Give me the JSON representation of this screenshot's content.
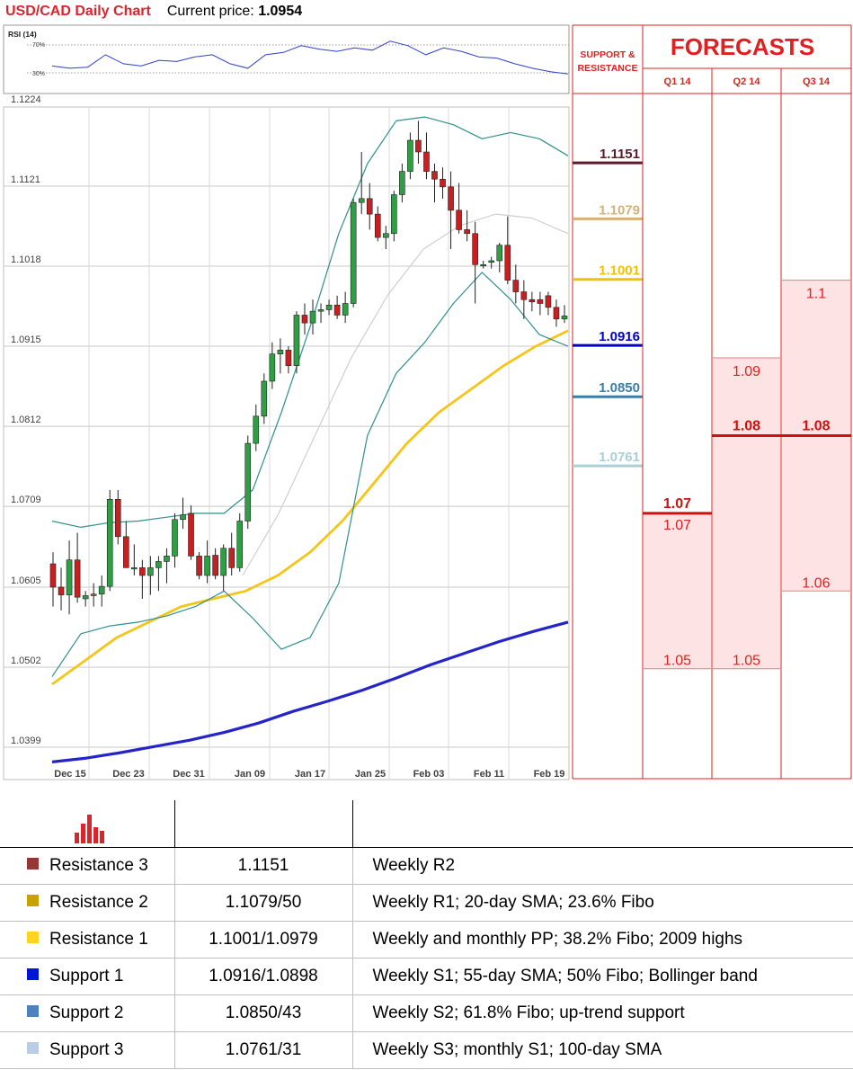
{
  "header": {
    "title": "USD/CAD Daily Chart",
    "price_label": "Current price:",
    "price_value": "1.0954"
  },
  "chart_data": {
    "type": "candlestick",
    "ylim": [
      1.0399,
      1.1224
    ],
    "yticks": [
      "1.1224",
      "1.1121",
      "1.1018",
      "1.0915",
      "1.0812",
      "1.0709",
      "1.0605",
      "1.0502",
      "1.0399"
    ],
    "xticks": [
      "Dec 15",
      "Dec 23",
      "Dec 31",
      "Jan 09",
      "Jan 17",
      "Jan 25",
      "Feb 03",
      "Feb 11",
      "Feb 19"
    ],
    "candles": [
      {
        "o": 1.0635,
        "h": 1.065,
        "l": 1.058,
        "c": 1.0605
      },
      {
        "o": 1.0605,
        "h": 1.063,
        "l": 1.0575,
        "c": 1.0595
      },
      {
        "o": 1.0595,
        "h": 1.0665,
        "l": 1.057,
        "c": 1.064
      },
      {
        "o": 1.064,
        "h": 1.0675,
        "l": 1.0585,
        "c": 1.0592
      },
      {
        "o": 1.059,
        "h": 1.06,
        "l": 1.058,
        "c": 1.0594
      },
      {
        "o": 1.0594,
        "h": 1.061,
        "l": 1.058,
        "c": 1.0596
      },
      {
        "o": 1.0596,
        "h": 1.062,
        "l": 1.058,
        "c": 1.0606
      },
      {
        "o": 1.0606,
        "h": 1.073,
        "l": 1.06,
        "c": 1.0718
      },
      {
        "o": 1.0718,
        "h": 1.073,
        "l": 1.066,
        "c": 1.067
      },
      {
        "o": 1.067,
        "h": 1.069,
        "l": 1.063,
        "c": 1.063
      },
      {
        "o": 1.063,
        "h": 1.066,
        "l": 1.062,
        "c": 1.063
      },
      {
        "o": 1.063,
        "h": 1.064,
        "l": 1.059,
        "c": 1.062
      },
      {
        "o": 1.062,
        "h": 1.0645,
        "l": 1.0595,
        "c": 1.063
      },
      {
        "o": 1.063,
        "h": 1.0645,
        "l": 1.06,
        "c": 1.0638
      },
      {
        "o": 1.0638,
        "h": 1.0655,
        "l": 1.061,
        "c": 1.0645
      },
      {
        "o": 1.0645,
        "h": 1.07,
        "l": 1.063,
        "c": 1.0692
      },
      {
        "o": 1.0692,
        "h": 1.072,
        "l": 1.068,
        "c": 1.0698
      },
      {
        "o": 1.07,
        "h": 1.071,
        "l": 1.064,
        "c": 1.0645
      },
      {
        "o": 1.0645,
        "h": 1.065,
        "l": 1.0615,
        "c": 1.062
      },
      {
        "o": 1.062,
        "h": 1.0665,
        "l": 1.061,
        "c": 1.0645
      },
      {
        "o": 1.0646,
        "h": 1.0655,
        "l": 1.0615,
        "c": 1.062
      },
      {
        "o": 1.062,
        "h": 1.066,
        "l": 1.06,
        "c": 1.0655
      },
      {
        "o": 1.0655,
        "h": 1.0675,
        "l": 1.062,
        "c": 1.063
      },
      {
        "o": 1.063,
        "h": 1.07,
        "l": 1.0625,
        "c": 1.069
      },
      {
        "o": 1.069,
        "h": 1.08,
        "l": 1.068,
        "c": 1.079
      },
      {
        "o": 1.079,
        "h": 1.084,
        "l": 1.078,
        "c": 1.0825
      },
      {
        "o": 1.0825,
        "h": 1.088,
        "l": 1.0815,
        "c": 1.087
      },
      {
        "o": 1.087,
        "h": 1.092,
        "l": 1.086,
        "c": 1.0905
      },
      {
        "o": 1.0905,
        "h": 1.0925,
        "l": 1.088,
        "c": 1.091
      },
      {
        "o": 1.091,
        "h": 1.0915,
        "l": 1.088,
        "c": 1.089
      },
      {
        "o": 1.089,
        "h": 1.096,
        "l": 1.088,
        "c": 1.0955
      },
      {
        "o": 1.0955,
        "h": 1.097,
        "l": 1.093,
        "c": 1.0945
      },
      {
        "o": 1.0945,
        "h": 1.0975,
        "l": 1.093,
        "c": 1.096
      },
      {
        "o": 1.096,
        "h": 1.097,
        "l": 1.0945,
        "c": 1.0962
      },
      {
        "o": 1.0962,
        "h": 1.0975,
        "l": 1.0955,
        "c": 1.0968
      },
      {
        "o": 1.0968,
        "h": 1.098,
        "l": 1.095,
        "c": 1.0955
      },
      {
        "o": 1.0955,
        "h": 1.0985,
        "l": 1.0945,
        "c": 1.097
      },
      {
        "o": 1.097,
        "h": 1.1105,
        "l": 1.0965,
        "c": 1.11
      },
      {
        "o": 1.11,
        "h": 1.1165,
        "l": 1.1085,
        "c": 1.1105
      },
      {
        "o": 1.1105,
        "h": 1.1125,
        "l": 1.1065,
        "c": 1.1085
      },
      {
        "o": 1.1085,
        "h": 1.1095,
        "l": 1.105,
        "c": 1.1055
      },
      {
        "o": 1.1055,
        "h": 1.107,
        "l": 1.104,
        "c": 1.106
      },
      {
        "o": 1.106,
        "h": 1.1115,
        "l": 1.105,
        "c": 1.111
      },
      {
        "o": 1.111,
        "h": 1.115,
        "l": 1.11,
        "c": 1.114
      },
      {
        "o": 1.114,
        "h": 1.119,
        "l": 1.113,
        "c": 1.118
      },
      {
        "o": 1.118,
        "h": 1.1205,
        "l": 1.115,
        "c": 1.1165
      },
      {
        "o": 1.1165,
        "h": 1.119,
        "l": 1.113,
        "c": 1.114
      },
      {
        "o": 1.114,
        "h": 1.115,
        "l": 1.11,
        "c": 1.113
      },
      {
        "o": 1.113,
        "h": 1.1145,
        "l": 1.1105,
        "c": 1.112
      },
      {
        "o": 1.112,
        "h": 1.114,
        "l": 1.104,
        "c": 1.109
      },
      {
        "o": 1.109,
        "h": 1.1125,
        "l": 1.106,
        "c": 1.1065
      },
      {
        "o": 1.1065,
        "h": 1.109,
        "l": 1.105,
        "c": 1.106
      },
      {
        "o": 1.106,
        "h": 1.1075,
        "l": 1.097,
        "c": 1.102
      },
      {
        "o": 1.102,
        "h": 1.1025,
        "l": 1.1015,
        "c": 1.102
      },
      {
        "o": 1.1023,
        "h": 1.103,
        "l": 1.1015,
        "c": 1.1025
      },
      {
        "o": 1.1025,
        "h": 1.1048,
        "l": 1.101,
        "c": 1.1045
      },
      {
        "o": 1.1045,
        "h": 1.1082,
        "l": 1.0995,
        "c": 1.1
      },
      {
        "o": 1.1,
        "h": 1.102,
        "l": 1.097,
        "c": 1.0985
      },
      {
        "o": 1.0985,
        "h": 1.1,
        "l": 1.095,
        "c": 1.0975
      },
      {
        "o": 1.0975,
        "h": 1.0985,
        "l": 1.096,
        "c": 1.0972
      },
      {
        "o": 1.0975,
        "h": 1.0985,
        "l": 1.0955,
        "c": 1.097
      },
      {
        "o": 1.098,
        "h": 1.0985,
        "l": 1.0955,
        "c": 1.0965
      },
      {
        "o": 1.0965,
        "h": 1.0975,
        "l": 1.094,
        "c": 1.095
      },
      {
        "o": 1.095,
        "h": 1.0968,
        "l": 1.0945,
        "c": 1.0954
      }
    ],
    "sma_100": [
      1.038,
      1.0385,
      1.0392,
      1.04,
      1.0408,
      1.0418,
      1.043,
      1.0445,
      1.0458,
      1.0472,
      1.0488,
      1.0505,
      1.052,
      1.0535,
      1.0548,
      1.056
    ],
    "sma_55": [
      1.048,
      1.051,
      1.054,
      1.056,
      1.058,
      1.059,
      1.06,
      1.062,
      1.065,
      1.069,
      1.074,
      1.079,
      1.083,
      1.086,
      1.089,
      1.0915,
      1.0935
    ],
    "sma_20": [
      1.062,
      1.07,
      1.08,
      1.09,
      1.098,
      1.104,
      1.107,
      1.1085,
      1.108,
      1.106
    ],
    "bb_upper": [
      1.069,
      1.0682,
      1.0688,
      1.069,
      1.0695,
      1.07,
      1.07,
      1.073,
      1.083,
      1.094,
      1.106,
      1.115,
      1.1205,
      1.121,
      1.12,
      1.1182,
      1.119,
      1.1182,
      1.116
    ],
    "bb_lower": [
      1.049,
      1.0545,
      1.0555,
      1.056,
      1.0568,
      1.058,
      1.06,
      1.0565,
      1.0525,
      1.054,
      1.061,
      1.08,
      1.088,
      1.092,
      1.097,
      1.101,
      1.0975,
      1.093,
      1.0915
    ],
    "rsi": {
      "label": "RSI (14)",
      "levels": [
        "70%",
        "30%"
      ],
      "values": [
        50,
        48,
        49,
        60,
        52,
        50,
        55,
        54,
        58,
        60,
        52,
        48,
        60,
        62,
        68,
        65,
        63,
        66,
        64,
        72,
        68,
        60,
        66,
        63,
        58,
        57,
        52,
        48,
        45,
        43
      ]
    }
  },
  "levels": {
    "title_line1": "SUPPORT &",
    "title_line2": "RESISTANCE",
    "items": [
      {
        "label": "1.1151",
        "value": 1.1151,
        "color": "#5b1a2e"
      },
      {
        "label": "1.1079",
        "value": 1.1079,
        "color": "#d4b27a"
      },
      {
        "label": "1.1001",
        "value": 1.1001,
        "color": "#f2c200"
      },
      {
        "label": "1.0916",
        "value": 1.0916,
        "color": "#0000cc"
      },
      {
        "label": "1.0850",
        "value": 1.085,
        "color": "#3a7fa8"
      },
      {
        "label": "1.0761",
        "value": 1.0761,
        "color": "#a8d0d6"
      }
    ]
  },
  "forecasts": {
    "title": "FORECASTS",
    "columns": [
      {
        "quarter": "Q1 14",
        "high": 1.07,
        "high_label": "1.07",
        "low": 1.05,
        "low_label": "1.05",
        "median": 1.07,
        "median_label": "1.07"
      },
      {
        "quarter": "Q2 14",
        "high": 1.09,
        "high_label": "1.09",
        "low": 1.05,
        "low_label": "1.05",
        "median": 1.08,
        "median_label": "1.08"
      },
      {
        "quarter": "Q3 14",
        "high": 1.1,
        "high_label": "1.1",
        "low": 1.06,
        "low_label": "1.06",
        "median": 1.08,
        "median_label": "1.08"
      }
    ]
  },
  "table": {
    "rows": [
      {
        "name": "Resistance 3",
        "color": "#953735",
        "value": "1.1151",
        "note": "Weekly R2"
      },
      {
        "name": "Resistance 2",
        "color": "#c9a200",
        "value": "1.1079/50",
        "note": "Weekly R1; 20-day SMA; 23.6% Fibo"
      },
      {
        "name": "Resistance 1",
        "color": "#ffd320",
        "value": "1.1001/1.0979",
        "note": "Weekly and monthly PP; 38.2% Fibo; 2009 highs"
      },
      {
        "name": "Support 1",
        "color": "#0015d8",
        "value": "1.0916/1.0898",
        "note": "Weekly S1; 55-day SMA; 50% Fibo; Bollinger band"
      },
      {
        "name": "Support 2",
        "color": "#4f81bd",
        "value": "1.0850/43",
        "note": "Weekly S2; 61.8% Fibo; up-trend support"
      },
      {
        "name": "Support 3",
        "color": "#b9cde5",
        "value": "1.0761/31",
        "note": "Weekly S3; monthly S1; 100-day SMA"
      }
    ]
  }
}
